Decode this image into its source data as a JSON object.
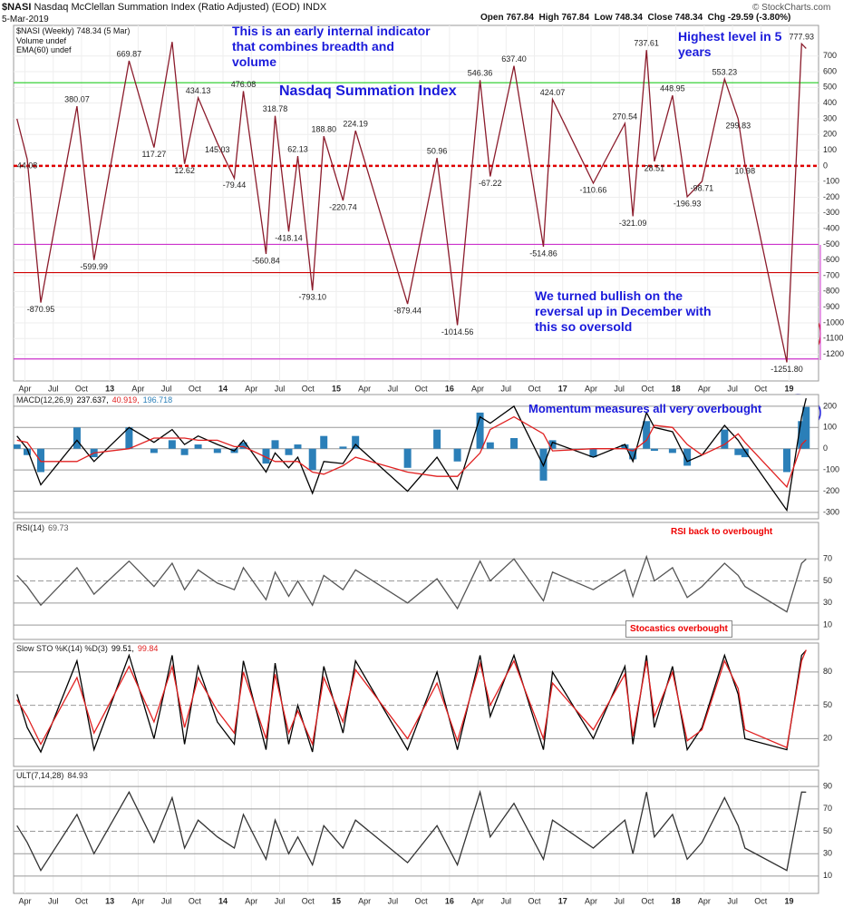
{
  "header": {
    "symbol": "$NASI",
    "description": "Nasdaq McClellan Summation Index (Ratio Adjusted) (EOD) INDX",
    "date": "5-Mar-2019",
    "quote": "Open 767.84  High 767.84  Low 748.34  Close 748.34  Chg -29.59 (-3.80%)",
    "source": "© StockCharts.com"
  },
  "chart_data": [
    {
      "type": "line",
      "legend_notes": [
        "Volume undef",
        "EMA(60) undef"
      ],
      "annotations": [
        "This is an early internal indicator that combines breadth and volume",
        "Nasdaq Summation Index",
        "Highest level in 5 years",
        "We turned bullish on the reversal up in December with this so oversold"
      ],
      "x": [
        2012.18,
        2012.27,
        2012.39,
        2012.71,
        2012.86,
        2013.17,
        2013.39,
        2013.55,
        2013.66,
        2013.78,
        2013.95,
        2014.1,
        2014.18,
        2014.38,
        2014.46,
        2014.58,
        2014.66,
        2014.79,
        2014.89,
        2015.06,
        2015.17,
        2015.63,
        2015.89,
        2016.07,
        2016.27,
        2016.36,
        2016.57,
        2016.83,
        2016.91,
        2017.27,
        2017.55,
        2017.62,
        2017.74,
        2017.81,
        2017.97,
        2018.1,
        2018.23,
        2018.43,
        2018.55,
        2018.61,
        2018.98,
        2019.11,
        2019.15
      ],
      "series": [
        {
          "name": "$NASI (Weekly) 748.34 (5 Mar)",
          "color": "#8b1c2c",
          "values": [
            300,
            44.08,
            -870.95,
            380.07,
            -599.99,
            669.87,
            117.27,
            790,
            12.62,
            434.13,
            145.03,
            -79.44,
            476.08,
            -560.84,
            318.78,
            -418.14,
            62.13,
            -793.1,
            188.8,
            -220.74,
            224.19,
            -879.44,
            50.96,
            -1014.56,
            546.36,
            -67.22,
            637.4,
            -514.86,
            424.07,
            -110.66,
            270.54,
            -321.09,
            737.61,
            28.51,
            448.95,
            -196.93,
            -98.71,
            553.23,
            299.83,
            10.98,
            -1251.8,
            777.93,
            748.34
          ],
          "value_labels": [
            null,
            "44.08",
            "-870.95",
            "380.07",
            "-599.99",
            "669.87",
            "117.27",
            null,
            "12.62",
            "434.13",
            "145.03",
            "-79.44",
            "476.08",
            "-560.84",
            "318.78",
            "-418.14",
            "62.13",
            "-793.10",
            "188.80",
            "-220.74",
            "224.19",
            "-879.44",
            "50.96",
            "-1014.56",
            "546.36",
            "-67.22",
            "637.40",
            "-514.86",
            "424.07",
            "-110.66",
            "270.54",
            "-321.09",
            "737.61",
            "28.51",
            "448.95",
            "-196.93",
            "-98.71",
            "553.23",
            "299.83",
            "10.98",
            "-1251.80",
            "777.93",
            null
          ]
        }
      ],
      "reference_lines": [
        {
          "value": 530,
          "color": "#22cc22"
        },
        {
          "value": 0,
          "color": "#e00000",
          "dash": true
        },
        {
          "value": -680,
          "color": "#d00000"
        },
        {
          "value": -500,
          "color": "#cc33cc"
        },
        {
          "value": -1230,
          "color": "#cc33cc"
        }
      ],
      "xlim": [
        2012.15,
        2019.26
      ],
      "ylim": [
        -1370,
        895
      ],
      "xticks": [
        {
          "value": 2012.25,
          "label": "Apr"
        },
        {
          "value": 2012.5,
          "label": "Jul"
        },
        {
          "value": 2012.75,
          "label": "Oct"
        },
        {
          "value": 2013,
          "label": "13"
        },
        {
          "value": 2013.25,
          "label": "Apr"
        },
        {
          "value": 2013.5,
          "label": "Jul"
        },
        {
          "value": 2013.75,
          "label": "Oct"
        },
        {
          "value": 2014,
          "label": "14"
        },
        {
          "value": 2014.25,
          "label": "Apr"
        },
        {
          "value": 2014.5,
          "label": "Jul"
        },
        {
          "value": 2014.75,
          "label": "Oct"
        },
        {
          "value": 2015,
          "label": "15"
        },
        {
          "value": 2015.25,
          "label": "Apr"
        },
        {
          "value": 2015.5,
          "label": "Jul"
        },
        {
          "value": 2015.75,
          "label": "Oct"
        },
        {
          "value": 2016,
          "label": "16"
        },
        {
          "value": 2016.25,
          "label": "Apr"
        },
        {
          "value": 2016.5,
          "label": "Jul"
        },
        {
          "value": 2016.75,
          "label": "Oct"
        },
        {
          "value": 2017,
          "label": "17"
        },
        {
          "value": 2017.25,
          "label": "Apr"
        },
        {
          "value": 2017.5,
          "label": "Jul"
        },
        {
          "value": 2017.75,
          "label": "Oct"
        },
        {
          "value": 2018,
          "label": "18"
        },
        {
          "value": 2018.25,
          "label": "Apr"
        },
        {
          "value": 2018.5,
          "label": "Jul"
        },
        {
          "value": 2018.75,
          "label": "Oct"
        },
        {
          "value": 2019,
          "label": "19"
        }
      ],
      "yticks": [
        700,
        600,
        500,
        400,
        300,
        200,
        100,
        0,
        -100,
        -200,
        -300,
        -400,
        -500,
        -600,
        -700,
        -800,
        -900,
        -1000,
        -1100,
        -1200
      ],
      "grid": true
    },
    {
      "type": "line",
      "title": "MACD(12,26,9)",
      "readouts": [
        "237.637,",
        "40.919,",
        "196.718"
      ],
      "annotations": [
        "Momentum measures all very overbought"
      ],
      "x": [
        2012.18,
        2012.27,
        2012.39,
        2012.71,
        2012.86,
        2013.17,
        2013.39,
        2013.55,
        2013.66,
        2013.78,
        2013.95,
        2014.1,
        2014.18,
        2014.38,
        2014.46,
        2014.58,
        2014.66,
        2014.79,
        2014.89,
        2015.06,
        2015.17,
        2015.63,
        2015.89,
        2016.07,
        2016.27,
        2016.36,
        2016.57,
        2016.83,
        2016.91,
        2017.27,
        2017.55,
        2017.62,
        2017.74,
        2017.81,
        2017.97,
        2018.1,
        2018.23,
        2018.43,
        2018.55,
        2018.61,
        2018.98,
        2019.11,
        2019.15
      ],
      "series": [
        {
          "color": "#2b7fb8",
          "style": "bar",
          "values": [
            20,
            -30,
            -110,
            100,
            -40,
            100,
            -20,
            40,
            -30,
            20,
            -20,
            -20,
            30,
            -70,
            40,
            -30,
            20,
            -100,
            60,
            10,
            60,
            -90,
            90,
            -60,
            170,
            30,
            50,
            -150,
            40,
            -40,
            20,
            -50,
            130,
            -10,
            -20,
            -80,
            0,
            90,
            -30,
            -40,
            -110,
            130,
            196.718
          ]
        },
        {
          "color": "#000000",
          "values": [
            60,
            0,
            -170,
            40,
            -60,
            100,
            30,
            90,
            20,
            60,
            20,
            -10,
            40,
            -110,
            -20,
            -90,
            -40,
            -210,
            -60,
            -70,
            20,
            -200,
            -40,
            -190,
            150,
            120,
            200,
            -80,
            30,
            -40,
            20,
            -60,
            170,
            100,
            80,
            -60,
            -30,
            110,
            40,
            -10,
            -290,
            150,
            237.637
          ]
        },
        {
          "color": "#e02020",
          "values": [
            40,
            30,
            -60,
            -60,
            -20,
            0,
            50,
            50,
            50,
            40,
            40,
            10,
            10,
            -40,
            -60,
            -60,
            -60,
            -110,
            -120,
            -80,
            -40,
            -110,
            -130,
            -130,
            -20,
            90,
            150,
            70,
            -10,
            0,
            0,
            -10,
            40,
            110,
            100,
            20,
            -30,
            20,
            70,
            30,
            -180,
            20,
            40.919
          ]
        }
      ],
      "xlim": [
        2012.15,
        2019.26
      ],
      "ylim": [
        -330,
        255
      ],
      "yticks": [
        200,
        100,
        0,
        -100,
        -200,
        -300
      ],
      "grid": true
    },
    {
      "type": "line",
      "title": "RSI(14)",
      "readouts": [
        "69.73"
      ],
      "annotations": [
        "RSI back to overbought",
        "Stocastics overbought"
      ],
      "x": [
        2012.18,
        2012.27,
        2012.39,
        2012.71,
        2012.86,
        2013.17,
        2013.39,
        2013.55,
        2013.66,
        2013.78,
        2013.95,
        2014.1,
        2014.18,
        2014.38,
        2014.46,
        2014.58,
        2014.66,
        2014.79,
        2014.89,
        2015.06,
        2015.17,
        2015.63,
        2015.89,
        2016.07,
        2016.27,
        2016.36,
        2016.57,
        2016.83,
        2016.91,
        2017.27,
        2017.55,
        2017.62,
        2017.74,
        2017.81,
        2017.97,
        2018.1,
        2018.23,
        2018.43,
        2018.55,
        2018.61,
        2018.98,
        2019.11,
        2019.15
      ],
      "series": [
        {
          "color": "#555555",
          "values": [
            55,
            45,
            28,
            62,
            38,
            68,
            45,
            66,
            42,
            60,
            48,
            42,
            62,
            33,
            58,
            36,
            50,
            28,
            55,
            42,
            60,
            30,
            52,
            25,
            68,
            50,
            70,
            32,
            58,
            42,
            60,
            36,
            72,
            50,
            62,
            35,
            45,
            66,
            55,
            45,
            22,
            66,
            69.73
          ]
        }
      ],
      "xlim": [
        2012.15,
        2019.26
      ],
      "ylim": [
        -3,
        103
      ],
      "yticks": [
        70,
        50,
        30,
        10
      ],
      "grid": true
    },
    {
      "type": "line",
      "title": "Slow STO %K(14) %D(3)",
      "readouts": [
        "99.51,",
        "99.84"
      ],
      "x": [
        2012.18,
        2012.27,
        2012.39,
        2012.71,
        2012.86,
        2013.17,
        2013.39,
        2013.55,
        2013.66,
        2013.78,
        2013.95,
        2014.1,
        2014.18,
        2014.38,
        2014.46,
        2014.58,
        2014.66,
        2014.79,
        2014.89,
        2015.06,
        2015.17,
        2015.63,
        2015.89,
        2016.07,
        2016.27,
        2016.36,
        2016.57,
        2016.83,
        2016.91,
        2017.27,
        2017.55,
        2017.62,
        2017.74,
        2017.81,
        2017.97,
        2018.1,
        2018.23,
        2018.43,
        2018.55,
        2018.61,
        2018.98,
        2019.11,
        2019.15
      ],
      "series": [
        {
          "color": "#000000",
          "values": [
            60,
            30,
            8,
            90,
            10,
            95,
            20,
            95,
            15,
            85,
            35,
            15,
            90,
            10,
            88,
            15,
            50,
            8,
            85,
            25,
            90,
            10,
            80,
            10,
            95,
            40,
            95,
            10,
            80,
            20,
            85,
            15,
            95,
            30,
            85,
            10,
            30,
            95,
            60,
            20,
            10,
            95,
            99.51
          ]
        },
        {
          "color": "#e02020",
          "values": [
            55,
            40,
            15,
            75,
            25,
            85,
            35,
            85,
            30,
            75,
            45,
            25,
            80,
            20,
            78,
            25,
            45,
            15,
            75,
            35,
            82,
            20,
            70,
            18,
            88,
            50,
            90,
            20,
            70,
            28,
            78,
            22,
            90,
            40,
            80,
            18,
            28,
            90,
            65,
            28,
            12,
            90,
            99.84
          ]
        }
      ],
      "xlim": [
        2012.15,
        2019.26
      ],
      "ylim": [
        -5,
        106
      ],
      "yticks": [
        80,
        50,
        20
      ],
      "grid": true
    },
    {
      "type": "line",
      "title": "ULT(7,14,28)",
      "readouts": [
        "84.93"
      ],
      "x": [
        2012.18,
        2012.27,
        2012.39,
        2012.71,
        2012.86,
        2013.17,
        2013.39,
        2013.55,
        2013.66,
        2013.78,
        2013.95,
        2014.1,
        2014.18,
        2014.38,
        2014.46,
        2014.58,
        2014.66,
        2014.79,
        2014.89,
        2015.06,
        2015.17,
        2015.63,
        2015.89,
        2016.07,
        2016.27,
        2016.36,
        2016.57,
        2016.83,
        2016.91,
        2017.27,
        2017.55,
        2017.62,
        2017.74,
        2017.81,
        2017.97,
        2018.1,
        2018.23,
        2018.43,
        2018.55,
        2018.61,
        2018.98,
        2019.11,
        2019.15
      ],
      "series": [
        {
          "color": "#333333",
          "values": [
            55,
            40,
            15,
            65,
            30,
            85,
            40,
            80,
            35,
            60,
            45,
            35,
            65,
            25,
            60,
            30,
            45,
            20,
            55,
            35,
            60,
            22,
            55,
            20,
            85,
            45,
            75,
            25,
            60,
            35,
            60,
            30,
            85,
            45,
            65,
            25,
            40,
            80,
            55,
            35,
            15,
            85,
            84.93
          ]
        }
      ],
      "xlim": [
        2012.15,
        2019.26
      ],
      "ylim": [
        -5.5,
        104.7
      ],
      "xticks": [
        {
          "value": 2012.25,
          "label": "Apr"
        },
        {
          "value": 2012.5,
          "label": "Jul"
        },
        {
          "value": 2012.75,
          "label": "Oct"
        },
        {
          "value": 2013,
          "label": "13"
        },
        {
          "value": 2013.25,
          "label": "Apr"
        },
        {
          "value": 2013.5,
          "label": "Jul"
        },
        {
          "value": 2013.75,
          "label": "Oct"
        },
        {
          "value": 2014,
          "label": "14"
        },
        {
          "value": 2014.25,
          "label": "Apr"
        },
        {
          "value": 2014.5,
          "label": "Jul"
        },
        {
          "value": 2014.75,
          "label": "Oct"
        },
        {
          "value": 2015,
          "label": "15"
        },
        {
          "value": 2015.25,
          "label": "Apr"
        },
        {
          "value": 2015.5,
          "label": "Jul"
        },
        {
          "value": 2015.75,
          "label": "Oct"
        },
        {
          "value": 2016,
          "label": "16"
        },
        {
          "value": 2016.25,
          "label": "Apr"
        },
        {
          "value": 2016.5,
          "label": "Jul"
        },
        {
          "value": 2016.75,
          "label": "Oct"
        },
        {
          "value": 2017,
          "label": "17"
        },
        {
          "value": 2017.25,
          "label": "Apr"
        },
        {
          "value": 2017.5,
          "label": "Jul"
        },
        {
          "value": 2017.75,
          "label": "Oct"
        },
        {
          "value": 2018,
          "label": "18"
        },
        {
          "value": 2018.25,
          "label": "Apr"
        },
        {
          "value": 2018.5,
          "label": "Jul"
        },
        {
          "value": 2018.75,
          "label": "Oct"
        },
        {
          "value": 2019,
          "label": "19"
        }
      ],
      "yticks": [
        90,
        70,
        50,
        30,
        10
      ],
      "grid": true
    }
  ]
}
